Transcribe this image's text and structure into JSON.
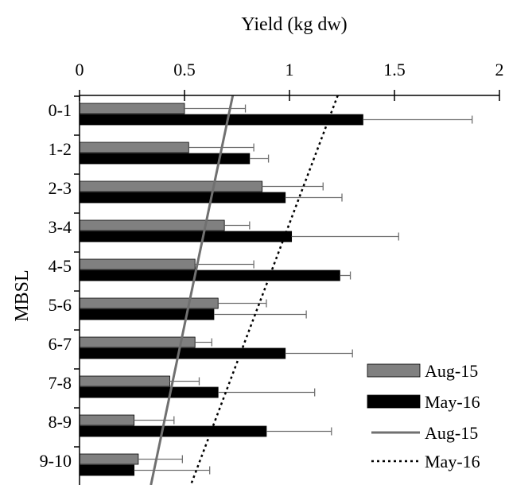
{
  "chart_data": {
    "type": "bar",
    "orientation": "horizontal",
    "title": "",
    "xlabel": "Yield (kg dw)",
    "ylabel": "MBSL",
    "xlim": [
      0,
      2
    ],
    "x_axis_position": "top",
    "x_ticks": [
      0,
      0.5,
      1,
      1.5,
      2
    ],
    "x_tick_labels": [
      "0",
      "0.5",
      "1",
      "1.5",
      "2"
    ],
    "categories": [
      "0-1",
      "1-2",
      "2-3",
      "3-4",
      "4-5",
      "5-6",
      "6-7",
      "7-8",
      "8-9",
      "9-10"
    ],
    "grid": false,
    "legend_position": "bottom-right",
    "series": [
      {
        "name": "Aug-15",
        "kind": "bar",
        "color": "#808080",
        "values": [
          0.5,
          0.52,
          0.87,
          0.69,
          0.55,
          0.66,
          0.55,
          0.43,
          0.26,
          0.28
        ],
        "error": [
          0.29,
          0.31,
          0.29,
          0.12,
          0.28,
          0.23,
          0.08,
          0.14,
          0.19,
          0.21
        ]
      },
      {
        "name": "May-16",
        "kind": "bar",
        "color": "#000000",
        "values": [
          1.35,
          0.81,
          0.98,
          1.01,
          1.24,
          0.64,
          0.98,
          0.66,
          0.89,
          0.26
        ],
        "error": [
          0.52,
          0.09,
          0.27,
          0.51,
          0.05,
          0.44,
          0.32,
          0.46,
          0.31,
          0.36
        ]
      },
      {
        "name": "Aug-15",
        "kind": "trendline",
        "style": "solid",
        "color": "#707070",
        "x_at_top": 0.73,
        "x_at_bottom": 0.34
      },
      {
        "name": "May-16",
        "kind": "trendline",
        "style": "dotted",
        "color": "#000000",
        "x_at_top": 1.23,
        "x_at_bottom": 0.53
      }
    ]
  }
}
